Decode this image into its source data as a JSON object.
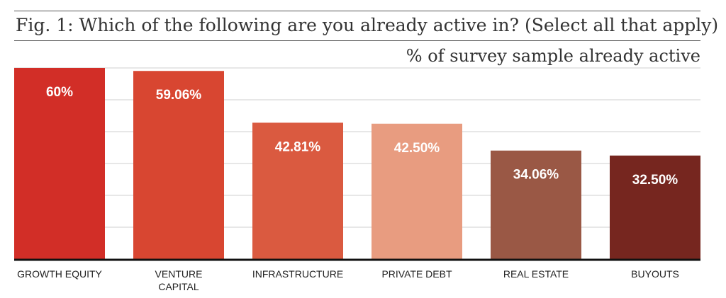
{
  "chart_data": {
    "type": "bar",
    "title": "Fig. 1: Which of the following are you already active in?  (Select all that apply)",
    "subtitle": "% of survey sample already active",
    "categories": [
      "GROWTH EQUITY",
      "VENTURE CAPITAL",
      "INFRASTRUCTURE",
      "PRIVATE DEBT",
      "REAL ESTATE",
      "BUYOUTS"
    ],
    "category_lines": [
      [
        "GROWTH EQUITY"
      ],
      [
        "VENTURE",
        "CAPITAL"
      ],
      [
        "INFRASTRUCTURE"
      ],
      [
        "PRIVATE DEBT"
      ],
      [
        "REAL ESTATE"
      ],
      [
        "BUYOUTS"
      ]
    ],
    "values": [
      60,
      59.06,
      42.81,
      42.5,
      34.06,
      32.5
    ],
    "value_labels": [
      "60%",
      "59.06%",
      "42.81%",
      "42.50%",
      "34.06%",
      "32.50%"
    ],
    "colors": [
      "#D22E27",
      "#D84631",
      "#DA5A40",
      "#E89C80",
      "#9A5845",
      "#76261F"
    ],
    "ylim": [
      0,
      60
    ],
    "grid": true,
    "xlabel": "",
    "ylabel": ""
  }
}
